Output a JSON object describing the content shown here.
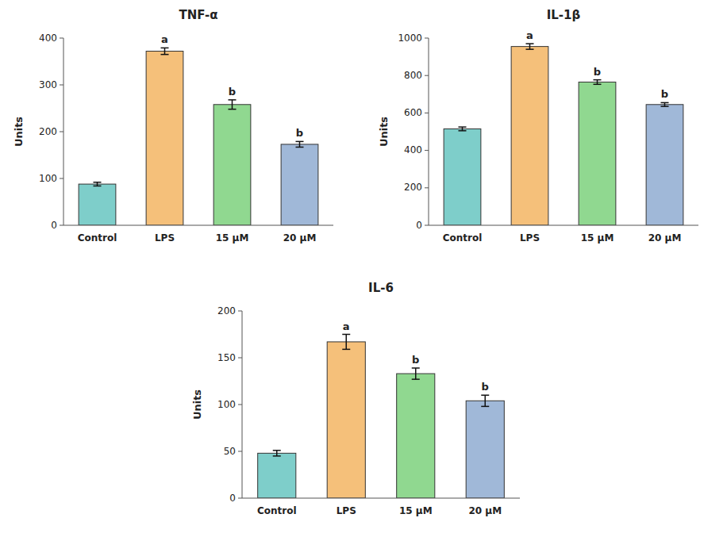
{
  "chart_data": [
    {
      "type": "bar",
      "title": "TNF-α",
      "categories": [
        "Control",
        "LPS",
        "15 μM",
        "20 μM"
      ],
      "values": [
        88,
        372,
        258,
        173
      ],
      "errors": [
        4,
        7,
        10,
        6
      ],
      "annotations": [
        null,
        "a",
        "b",
        "b"
      ],
      "ylim": [
        0,
        400
      ],
      "yticks": [
        0,
        100,
        200,
        300,
        400
      ],
      "colors": [
        "#7ececa",
        "#f5c07a",
        "#90d890",
        "#a0b8d8"
      ],
      "ylabel": "Units"
    },
    {
      "type": "bar",
      "title": "IL-1β",
      "categories": [
        "Control",
        "LPS",
        "15 μM",
        "20 μM"
      ],
      "values": [
        515,
        955,
        765,
        645
      ],
      "errors": [
        10,
        15,
        12,
        10
      ],
      "annotations": [
        null,
        "a",
        "b",
        "b"
      ],
      "ylim": [
        0,
        1000
      ],
      "yticks": [
        0,
        200,
        400,
        600,
        800,
        1000
      ],
      "colors": [
        "#7ececa",
        "#f5c07a",
        "#90d890",
        "#a0b8d8"
      ],
      "ylabel": "Units"
    },
    {
      "type": "bar",
      "title": "IL-6",
      "categories": [
        "Control",
        "LPS",
        "15 μM",
        "20 μM"
      ],
      "values": [
        48,
        167,
        133,
        104
      ],
      "errors": [
        3,
        8,
        6,
        6
      ],
      "annotations": [
        null,
        "a",
        "b",
        "b"
      ],
      "ylim": [
        0,
        200
      ],
      "yticks": [
        0,
        50,
        100,
        150,
        200
      ],
      "colors": [
        "#7ececa",
        "#f5c07a",
        "#90d890",
        "#a0b8d8"
      ],
      "ylabel": "Units"
    }
  ]
}
